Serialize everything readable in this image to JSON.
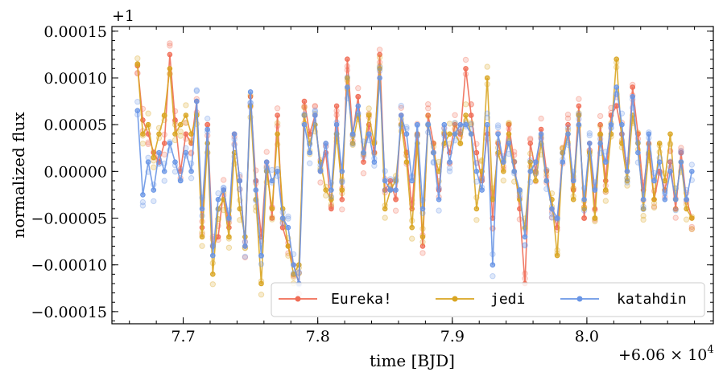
{
  "chart_data": {
    "type": "line",
    "title": "",
    "xlabel": "time [BJD]",
    "ylabel": "normalized flux",
    "x_offset_label": "+6.06 × 10",
    "x_offset_exp": "4",
    "y_offset_label": "+1",
    "xlim": [
      7.647,
      8.094
    ],
    "ylim": [
      -0.000163,
      0.000155
    ],
    "xticks": [
      7.7,
      7.8,
      7.9,
      8.0
    ],
    "xtick_labels": [
      "7.7",
      "7.8",
      "7.9",
      "8.0"
    ],
    "yticks": [
      -0.00015,
      -0.0001,
      -5e-05,
      0,
      5e-05,
      0.0001,
      0.00015
    ],
    "ytick_labels": [
      "−0.00015",
      "−0.00010",
      "−0.00005",
      "0.00000",
      "0.00005",
      "0.00010",
      "0.00015"
    ],
    "legend_position": "lower-right",
    "series": [
      {
        "name": "Eureka!",
        "color": "#f06c55",
        "x": [
          7.666,
          7.67,
          7.674,
          7.678,
          7.682,
          7.686,
          7.69,
          7.694,
          7.698,
          7.702,
          7.706,
          7.71,
          7.714,
          7.718,
          7.722,
          7.726,
          7.73,
          7.734,
          7.738,
          7.742,
          7.746,
          7.75,
          7.754,
          7.758,
          7.762,
          7.766,
          7.77,
          7.774,
          7.778,
          7.782,
          7.786,
          7.79,
          7.794,
          7.798,
          7.802,
          7.806,
          7.81,
          7.814,
          7.818,
          7.822,
          7.826,
          7.83,
          7.834,
          7.838,
          7.842,
          7.846,
          7.85,
          7.854,
          7.858,
          7.862,
          7.866,
          7.87,
          7.874,
          7.878,
          7.882,
          7.886,
          7.89,
          7.894,
          7.898,
          7.902,
          7.906,
          7.91,
          7.914,
          7.918,
          7.922,
          7.926,
          7.93,
          7.934,
          7.938,
          7.942,
          7.946,
          7.95,
          7.954,
          7.958,
          7.962,
          7.966,
          7.97,
          7.974,
          7.978,
          7.982,
          7.986,
          7.99,
          7.994,
          7.998,
          8.002,
          8.006,
          8.01,
          8.014,
          8.018,
          8.022,
          8.026,
          8.03,
          8.034,
          8.038,
          8.042,
          8.046,
          8.05,
          8.054,
          8.058,
          8.062,
          8.066,
          8.07,
          8.074,
          8.078
        ],
        "y": [
          0.000113,
          5.5e-05,
          4e-05,
          2e-05,
          1e-05,
          3e-05,
          0.000125,
          5.5e-05,
          0.0,
          4e-05,
          3e-05,
          7.5e-05,
          -6e-05,
          5e-05,
          -8e-05,
          -7e-05,
          -2e-05,
          -6e-05,
          4e-05,
          -1e-05,
          -8e-05,
          8e-05,
          -1e-05,
          -7e-05,
          1e-05,
          -5e-05,
          6e-05,
          -6e-05,
          -8e-05,
          -0.0001,
          -0.00012,
          7.5e-05,
          4e-05,
          6e-05,
          0.0,
          2e-05,
          -4e-05,
          7e-05,
          -3e-05,
          0.00012,
          4e-05,
          8e-05,
          1e-05,
          5e-05,
          2e-05,
          0.000125,
          -2e-05,
          -1e-05,
          -3e-05,
          6e-05,
          2e-05,
          -4e-05,
          4e-05,
          -8e-05,
          6e-05,
          3e-05,
          -2e-05,
          4e-05,
          2e-05,
          5e-05,
          4e-05,
          0.00011,
          6e-05,
          2e-05,
          -1e-05,
          4e-05,
          -5e-05,
          3e-05,
          1e-05,
          5e-05,
          1e-05,
          -4e-05,
          -0.00012,
          3e-05,
          0.0,
          4.5e-05,
          0.0,
          -4e-05,
          -6e-05,
          2e-05,
          5e-05,
          -2e-05,
          7e-05,
          -5e-05,
          3e-05,
          -4e-05,
          5e-05,
          -1e-05,
          6e-05,
          7e-05,
          4e-05,
          0.0,
          9e-05,
          4e-05,
          -2e-05,
          3e-05,
          -3e-05,
          0.0,
          -2e-05,
          1e-05,
          -4e-05,
          2e-05,
          -3e-05,
          -5e-05
        ]
      },
      {
        "name": "jedi",
        "color": "#d9a521",
        "x": [
          7.666,
          7.67,
          7.674,
          7.678,
          7.682,
          7.686,
          7.69,
          7.694,
          7.698,
          7.702,
          7.706,
          7.71,
          7.714,
          7.718,
          7.722,
          7.726,
          7.73,
          7.734,
          7.738,
          7.742,
          7.746,
          7.75,
          7.754,
          7.758,
          7.762,
          7.766,
          7.77,
          7.774,
          7.778,
          7.782,
          7.786,
          7.79,
          7.794,
          7.798,
          7.802,
          7.806,
          7.81,
          7.814,
          7.818,
          7.822,
          7.826,
          7.83,
          7.834,
          7.838,
          7.842,
          7.846,
          7.85,
          7.854,
          7.858,
          7.862,
          7.866,
          7.87,
          7.874,
          7.878,
          7.882,
          7.886,
          7.89,
          7.894,
          7.898,
          7.902,
          7.906,
          7.91,
          7.914,
          7.918,
          7.922,
          7.926,
          7.93,
          7.934,
          7.938,
          7.942,
          7.946,
          7.95,
          7.954,
          7.958,
          7.962,
          7.966,
          7.97,
          7.974,
          7.978,
          7.982,
          7.986,
          7.99,
          7.994,
          7.998,
          8.002,
          8.006,
          8.01,
          8.014,
          8.018,
          8.022,
          8.026,
          8.03,
          8.034,
          8.038,
          8.042,
          8.046,
          8.05,
          8.054,
          8.058,
          8.062,
          8.066,
          8.07,
          8.074,
          8.078
        ],
        "y": [
          0.000115,
          4e-05,
          5e-05,
          1.5e-05,
          4e-05,
          6e-05,
          0.00011,
          4e-05,
          5e-05,
          6e-05,
          4e-05,
          6e-05,
          -7e-05,
          3e-05,
          -0.00011,
          -4e-05,
          -3e-05,
          -7e-05,
          2e-05,
          -4e-05,
          -7e-05,
          7e-05,
          -3e-05,
          -0.00012,
          0.0,
          -4e-05,
          4e-05,
          -4e-05,
          -8e-05,
          -0.00011,
          -0.0001,
          6e-05,
          3e-05,
          5e-05,
          1e-05,
          -2e-05,
          -3e-05,
          4e-05,
          -2e-05,
          0.0001,
          3e-05,
          6e-05,
          2e-05,
          6e-05,
          3e-05,
          0.00011,
          -4e-05,
          -2e-05,
          -1e-05,
          5e-05,
          1e-05,
          -6e-05,
          3e-05,
          -7e-05,
          5e-05,
          2e-05,
          0.0,
          3e-05,
          4e-05,
          4e-05,
          3e-05,
          6e-05,
          4e-05,
          -4e-05,
          0.0,
          0.0001,
          -3e-05,
          2e-05,
          0.0,
          4e-05,
          0.0,
          -3e-05,
          -6e-05,
          1e-05,
          -1e-05,
          3e-05,
          -1e-05,
          -3e-05,
          -9e-05,
          2e-05,
          4e-05,
          -3e-05,
          6e-05,
          -4e-05,
          2e-05,
          -5e-05,
          4e-05,
          -2e-05,
          4e-05,
          0.00012,
          3e-05,
          -1e-05,
          6e-05,
          3e-05,
          -4e-05,
          2e-05,
          -3e-05,
          3e-05,
          -1e-05,
          4e-05,
          -3e-05,
          1e-05,
          -4e-05,
          -5e-05
        ]
      },
      {
        "name": "katahdin",
        "color": "#6a96e6",
        "x": [
          7.666,
          7.67,
          7.674,
          7.678,
          7.682,
          7.686,
          7.69,
          7.694,
          7.698,
          7.702,
          7.706,
          7.71,
          7.714,
          7.718,
          7.722,
          7.726,
          7.73,
          7.734,
          7.738,
          7.742,
          7.746,
          7.75,
          7.754,
          7.758,
          7.762,
          7.766,
          7.77,
          7.774,
          7.778,
          7.782,
          7.786,
          7.79,
          7.794,
          7.798,
          7.802,
          7.806,
          7.81,
          7.814,
          7.818,
          7.822,
          7.826,
          7.83,
          7.834,
          7.838,
          7.842,
          7.846,
          7.85,
          7.854,
          7.858,
          7.862,
          7.866,
          7.87,
          7.874,
          7.878,
          7.882,
          7.886,
          7.89,
          7.894,
          7.898,
          7.902,
          7.906,
          7.91,
          7.914,
          7.918,
          7.922,
          7.926,
          7.93,
          7.934,
          7.938,
          7.942,
          7.946,
          7.95,
          7.954,
          7.958,
          7.962,
          7.966,
          7.97,
          7.974,
          7.978,
          7.982,
          7.986,
          7.99,
          7.994,
          7.998,
          8.002,
          8.006,
          8.01,
          8.014,
          8.018,
          8.022,
          8.026,
          8.03,
          8.034,
          8.038,
          8.042,
          8.046,
          8.05,
          8.054,
          8.058,
          8.062,
          8.066,
          8.07,
          8.074,
          8.078
        ],
        "y": [
          6.5e-05,
          -2.5e-05,
          1e-05,
          -2e-05,
          2e-05,
          0.0,
          3e-05,
          1e-05,
          -1e-05,
          2e-05,
          0.0,
          7.5e-05,
          -4e-05,
          4.5e-05,
          -9e-05,
          -3e-05,
          -2e-05,
          -5e-05,
          4e-05,
          -1e-05,
          -8e-05,
          8.5e-05,
          -2e-05,
          -9e-05,
          1e-05,
          -1e-05,
          0.0,
          -5e-05,
          -6e-05,
          -0.0001,
          -0.00012,
          5e-05,
          2e-05,
          6e-05,
          0.0,
          3e-05,
          -2e-05,
          5e-05,
          0.0,
          9e-05,
          4e-05,
          7e-05,
          2e-05,
          4e-05,
          1e-05,
          0.0001,
          -1e-05,
          -2e-05,
          -2e-05,
          6e-05,
          4e-05,
          -1e-05,
          5e-05,
          -4e-05,
          5e-05,
          2e-05,
          -3e-05,
          5e-05,
          1e-05,
          4e-05,
          5e-05,
          5e-05,
          4e-05,
          0.0,
          -2e-05,
          5e-05,
          -0.0001,
          4e-05,
          1e-05,
          3e-05,
          0.0,
          -2e-05,
          -7e-05,
          0.0,
          1e-05,
          4e-05,
          -1e-05,
          -4e-05,
          -5e-05,
          1e-05,
          4e-05,
          -1e-05,
          5e-05,
          -3e-05,
          3e-05,
          -2e-05,
          3e-05,
          1e-05,
          5e-05,
          9e-05,
          5e-05,
          0.0,
          8e-05,
          2e-05,
          -3e-05,
          4e-05,
          -1e-05,
          1e-05,
          -3e-05,
          0.0,
          -3e-05,
          1e-05,
          -3e-05,
          0.0
        ]
      }
    ]
  }
}
